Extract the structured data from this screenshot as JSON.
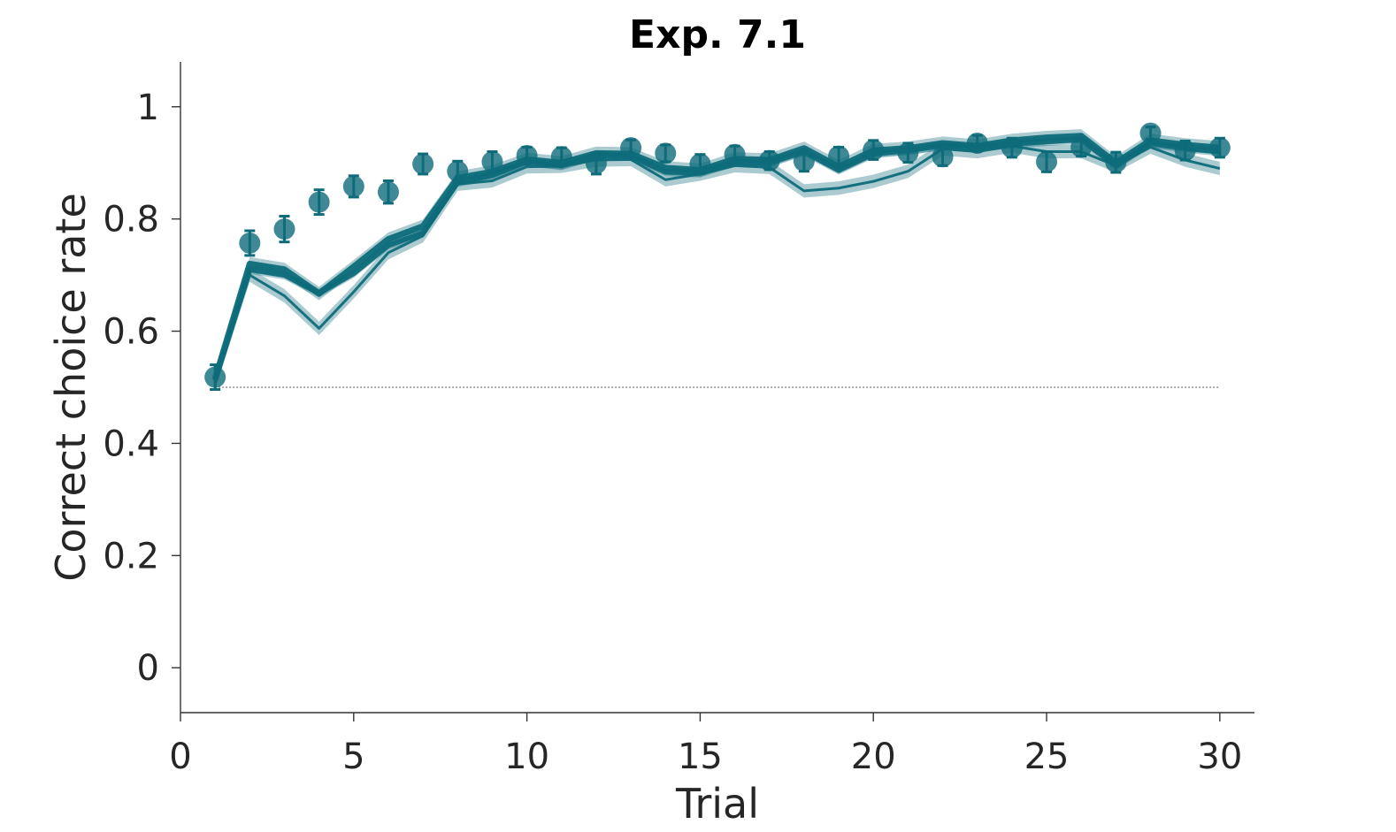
{
  "chart_data": {
    "type": "line",
    "title": "Exp. 7.1",
    "xlabel": "Trial",
    "ylabel": "Correct choice rate",
    "xlim": [
      0,
      31
    ],
    "ylim": [
      -0.08,
      1.08
    ],
    "xticks": [
      0,
      5,
      10,
      15,
      20,
      25,
      30
    ],
    "xtick_labels": [
      "0",
      "5",
      "10",
      "15",
      "20",
      "25",
      "30"
    ],
    "yticks": [
      0,
      0.2,
      0.4,
      0.6,
      0.8,
      1
    ],
    "ytick_labels": [
      "0",
      "0.2",
      "0.4",
      "0.6",
      "0.8",
      "1"
    ],
    "chance_level": 0.5,
    "grid": false,
    "color": "#0e6b7a",
    "x": [
      1,
      2,
      3,
      4,
      5,
      6,
      7,
      8,
      9,
      10,
      11,
      12,
      13,
      14,
      15,
      16,
      17,
      18,
      19,
      20,
      21,
      22,
      23,
      24,
      25,
      26,
      27,
      28,
      29,
      30
    ],
    "series": [
      {
        "kind": "points",
        "values": [
          0.518,
          0.757,
          0.782,
          0.83,
          0.858,
          0.848,
          0.898,
          0.885,
          0.902,
          0.913,
          0.911,
          0.899,
          0.927,
          0.917,
          0.898,
          0.915,
          0.904,
          0.903,
          0.912,
          0.923,
          0.918,
          0.911,
          0.935,
          0.927,
          0.902,
          0.928,
          0.901,
          0.953,
          0.922,
          0.927
        ],
        "errors": [
          0.022,
          0.022,
          0.023,
          0.022,
          0.019,
          0.02,
          0.018,
          0.018,
          0.018,
          0.015,
          0.016,
          0.019,
          0.014,
          0.015,
          0.017,
          0.015,
          0.016,
          0.018,
          0.016,
          0.017,
          0.017,
          0.016,
          0.014,
          0.017,
          0.018,
          0.016,
          0.018,
          0.011,
          0.017,
          0.017
        ]
      },
      {
        "kind": "line",
        "values": [
          0.515,
          0.72,
          0.71,
          0.667,
          0.715,
          0.764,
          0.787,
          0.873,
          0.884,
          0.906,
          0.9,
          0.917,
          0.916,
          0.891,
          0.887,
          0.907,
          0.905,
          0.926,
          0.893,
          0.922,
          0.926,
          0.935,
          0.93,
          0.94,
          0.945,
          0.948,
          0.9,
          0.94,
          0.932,
          0.927
        ],
        "band": 0.012
      },
      {
        "kind": "line",
        "values": [
          0.512,
          0.71,
          0.7,
          0.668,
          0.703,
          0.753,
          0.775,
          0.865,
          0.878,
          0.902,
          0.895,
          0.913,
          0.912,
          0.884,
          0.882,
          0.901,
          0.9,
          0.92,
          0.887,
          0.916,
          0.922,
          0.931,
          0.927,
          0.934,
          0.938,
          0.942,
          0.895,
          0.935,
          0.926,
          0.92
        ],
        "band": 0.008
      },
      {
        "kind": "line",
        "values": [
          0.508,
          0.7,
          0.663,
          0.605,
          0.67,
          0.74,
          0.77,
          0.862,
          0.868,
          0.893,
          0.894,
          0.905,
          0.906,
          0.87,
          0.88,
          0.895,
          0.892,
          0.85,
          0.855,
          0.867,
          0.885,
          0.925,
          0.92,
          0.93,
          0.92,
          0.92,
          0.895,
          0.928,
          0.905,
          0.89
        ],
        "band": 0.012
      }
    ]
  }
}
